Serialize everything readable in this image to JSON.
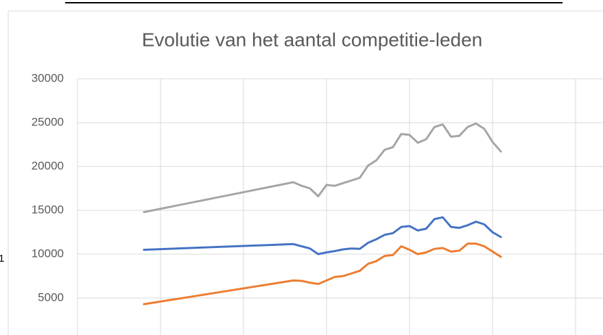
{
  "chart_data": {
    "type": "line",
    "title": "Evolutie van het aantal competitie-leden",
    "x": [
      0.8,
      2.6,
      2.7,
      2.8,
      2.9,
      3.0,
      3.1,
      3.2,
      3.3,
      3.4,
      3.5,
      3.6,
      3.7,
      3.8,
      3.9,
      4.0,
      4.1,
      4.2,
      4.3,
      4.4,
      4.5,
      4.6,
      4.7,
      4.8,
      4.9,
      5.0,
      5.1
    ],
    "series": [
      {
        "color": "#a5a5a5",
        "values": [
          14800,
          18200,
          17800,
          17500,
          16600,
          17900,
          17800,
          18100,
          18400,
          18700,
          20100,
          20700,
          21900,
          22200,
          23700,
          23600,
          22700,
          23100,
          24500,
          24800,
          23400,
          23500,
          24500,
          24900,
          24300,
          22800,
          21700
        ]
      },
      {
        "color": "#4472c4",
        "values": [
          10500,
          11150,
          10900,
          10650,
          10000,
          10200,
          10350,
          10550,
          10650,
          10600,
          11300,
          11700,
          12200,
          12400,
          13100,
          13200,
          12700,
          12900,
          14000,
          14200,
          13100,
          13000,
          13300,
          13700,
          13400,
          12500,
          11950
        ]
      },
      {
        "color": "#ed7d31",
        "values": [
          4300,
          7000,
          6950,
          6750,
          6600,
          7000,
          7400,
          7500,
          7800,
          8100,
          8900,
          9200,
          9800,
          9900,
          10900,
          10500,
          10000,
          10200,
          10600,
          10700,
          10300,
          10400,
          11200,
          11200,
          10900,
          10300,
          9700
        ]
      }
    ],
    "xlim": [
      0,
      6
    ],
    "xticks": [
      1,
      2,
      3,
      4,
      5,
      6
    ],
    "ylim": [
      0,
      30000
    ],
    "yticks": [
      5000,
      10000,
      15000,
      20000,
      25000,
      30000
    ],
    "grid": true
  },
  "side_text": "1"
}
